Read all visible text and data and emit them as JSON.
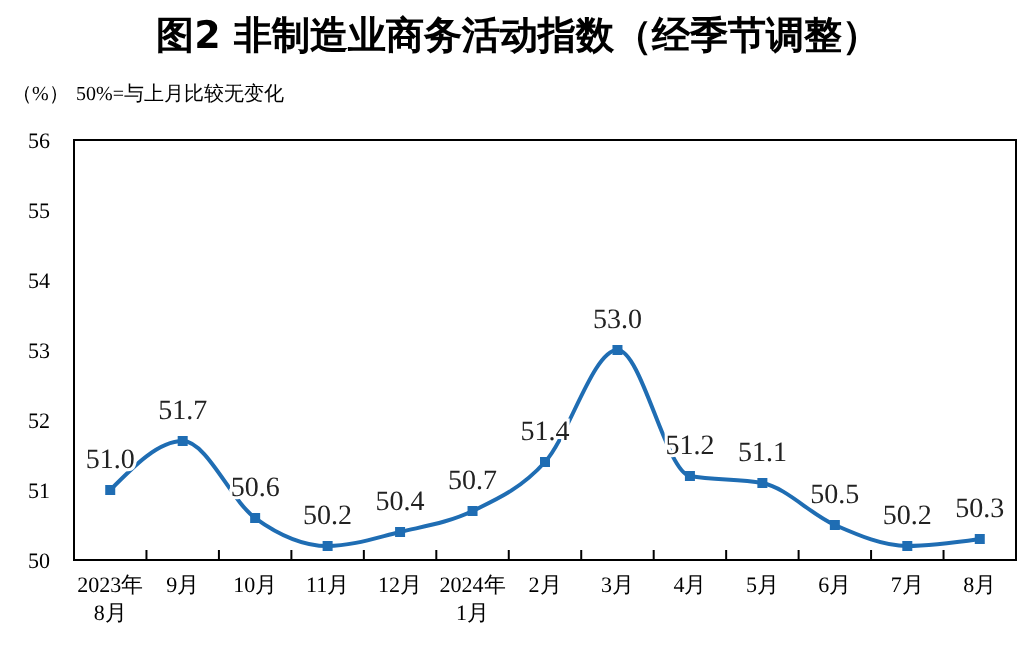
{
  "chart_data": {
    "type": "line",
    "title": "图2  非制造业商务活动指数（经季节调整）",
    "ylabel": "（%）",
    "annotations": [
      "50%=与上月比较无变化"
    ],
    "categories": [
      "2023年\n8月",
      "9月",
      "10月",
      "11月",
      "12月",
      "2024年\n1月",
      "2月",
      "3月",
      "4月",
      "5月",
      "6月",
      "7月",
      "8月"
    ],
    "series": [
      {
        "color": "#1f6db3",
        "values": [
          51.0,
          51.7,
          50.6,
          50.2,
          50.4,
          50.7,
          51.4,
          53.0,
          51.2,
          51.1,
          50.5,
          50.2,
          50.3
        ],
        "value_labels": [
          "51.0",
          "51.7",
          "50.6",
          "50.2",
          "50.4",
          "50.7",
          "51.4",
          "53.0",
          "51.2",
          "51.1",
          "50.5",
          "50.2",
          "50.3"
        ]
      }
    ],
    "ylim": [
      50,
      56
    ],
    "yticks": [
      50,
      51,
      52,
      53,
      54,
      55,
      56
    ],
    "marker": "square"
  }
}
